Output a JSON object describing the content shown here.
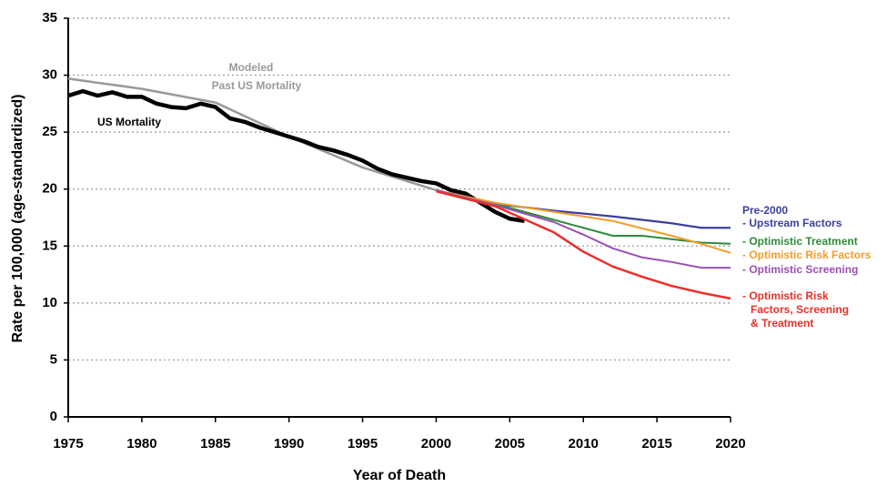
{
  "chart_data": {
    "type": "line",
    "x_label": "Year of Death",
    "y_label": "Rate per 100,000 (age-standardized)",
    "xlim": [
      1975,
      2020
    ],
    "xticks": [
      1975,
      1980,
      1985,
      1990,
      1995,
      2000,
      2005,
      2010,
      2015,
      2020
    ],
    "ylim": [
      0,
      35
    ],
    "yticks": [
      0,
      5,
      10,
      15,
      20,
      25,
      30,
      35
    ],
    "grid": true,
    "series": [
      {
        "name": [
          "US Mortality"
        ],
        "color": "#000000",
        "x": [
          1975,
          1976,
          1977,
          1978,
          1979,
          1980,
          1981,
          1982,
          1983,
          1984,
          1985,
          1986,
          1987,
          1988,
          1989,
          1990,
          1991,
          1992,
          1993,
          1994,
          1995,
          1996,
          1997,
          1998,
          1999,
          2000,
          2001,
          2002,
          2003,
          2004,
          2005,
          2006
        ],
        "values": [
          28.2,
          28.6,
          28.2,
          28.5,
          28.1,
          28.1,
          27.5,
          27.2,
          27.1,
          27.5,
          27.2,
          26.2,
          25.9,
          25.4,
          25.0,
          24.6,
          24.2,
          23.7,
          23.4,
          23.0,
          22.5,
          21.8,
          21.3,
          21.0,
          20.7,
          20.5,
          19.9,
          19.6,
          18.8,
          18.0,
          17.4,
          17.2
        ]
      },
      {
        "name": [
          "Modeled",
          "Past US Mortality"
        ],
        "color": "#999999",
        "x": [
          1975,
          1980,
          1985,
          1990,
          1995,
          2000
        ],
        "values": [
          29.7,
          28.8,
          27.6,
          24.6,
          21.9,
          19.9
        ]
      },
      {
        "name": [
          "Pre-2000",
          "- Upstream  Factors"
        ],
        "color": "#3b3fa0",
        "x": [
          2000,
          2004,
          2008,
          2012,
          2016,
          2018,
          2020
        ],
        "values": [
          19.9,
          18.7,
          18.1,
          17.6,
          17.0,
          16.6,
          16.6
        ]
      },
      {
        "name": [
          "- Optimistic Treatment"
        ],
        "color": "#2e8b3a",
        "x": [
          2000,
          2004,
          2008,
          2010,
          2012,
          2014,
          2016,
          2018,
          2020
        ],
        "values": [
          19.9,
          18.7,
          17.3,
          16.6,
          15.9,
          15.9,
          15.6,
          15.3,
          15.2
        ]
      },
      {
        "name": [
          "- Optimistic Risk Factors"
        ],
        "color": "#f39c2a",
        "x": [
          2000,
          2004,
          2008,
          2012,
          2016,
          2018,
          2020
        ],
        "values": [
          19.9,
          18.8,
          18.0,
          17.2,
          15.9,
          15.2,
          14.4
        ]
      },
      {
        "name": [
          "- Optimistic  Screening"
        ],
        "color": "#9a4fb5",
        "x": [
          2000,
          2004,
          2008,
          2010,
          2012,
          2014,
          2016,
          2018,
          2020
        ],
        "values": [
          19.9,
          18.6,
          17.1,
          16.0,
          14.8,
          14.0,
          13.6,
          13.1,
          13.1
        ]
      },
      {
        "name": [
          "- Optimistic Risk",
          "Factors, Screening",
          "& Treatment"
        ],
        "color": "#e8302a",
        "x": [
          2000,
          2004,
          2008,
          2010,
          2012,
          2014,
          2016,
          2018,
          2020
        ],
        "values": [
          19.8,
          18.5,
          16.2,
          14.5,
          13.2,
          12.3,
          11.5,
          10.9,
          10.4
        ]
      }
    ]
  }
}
